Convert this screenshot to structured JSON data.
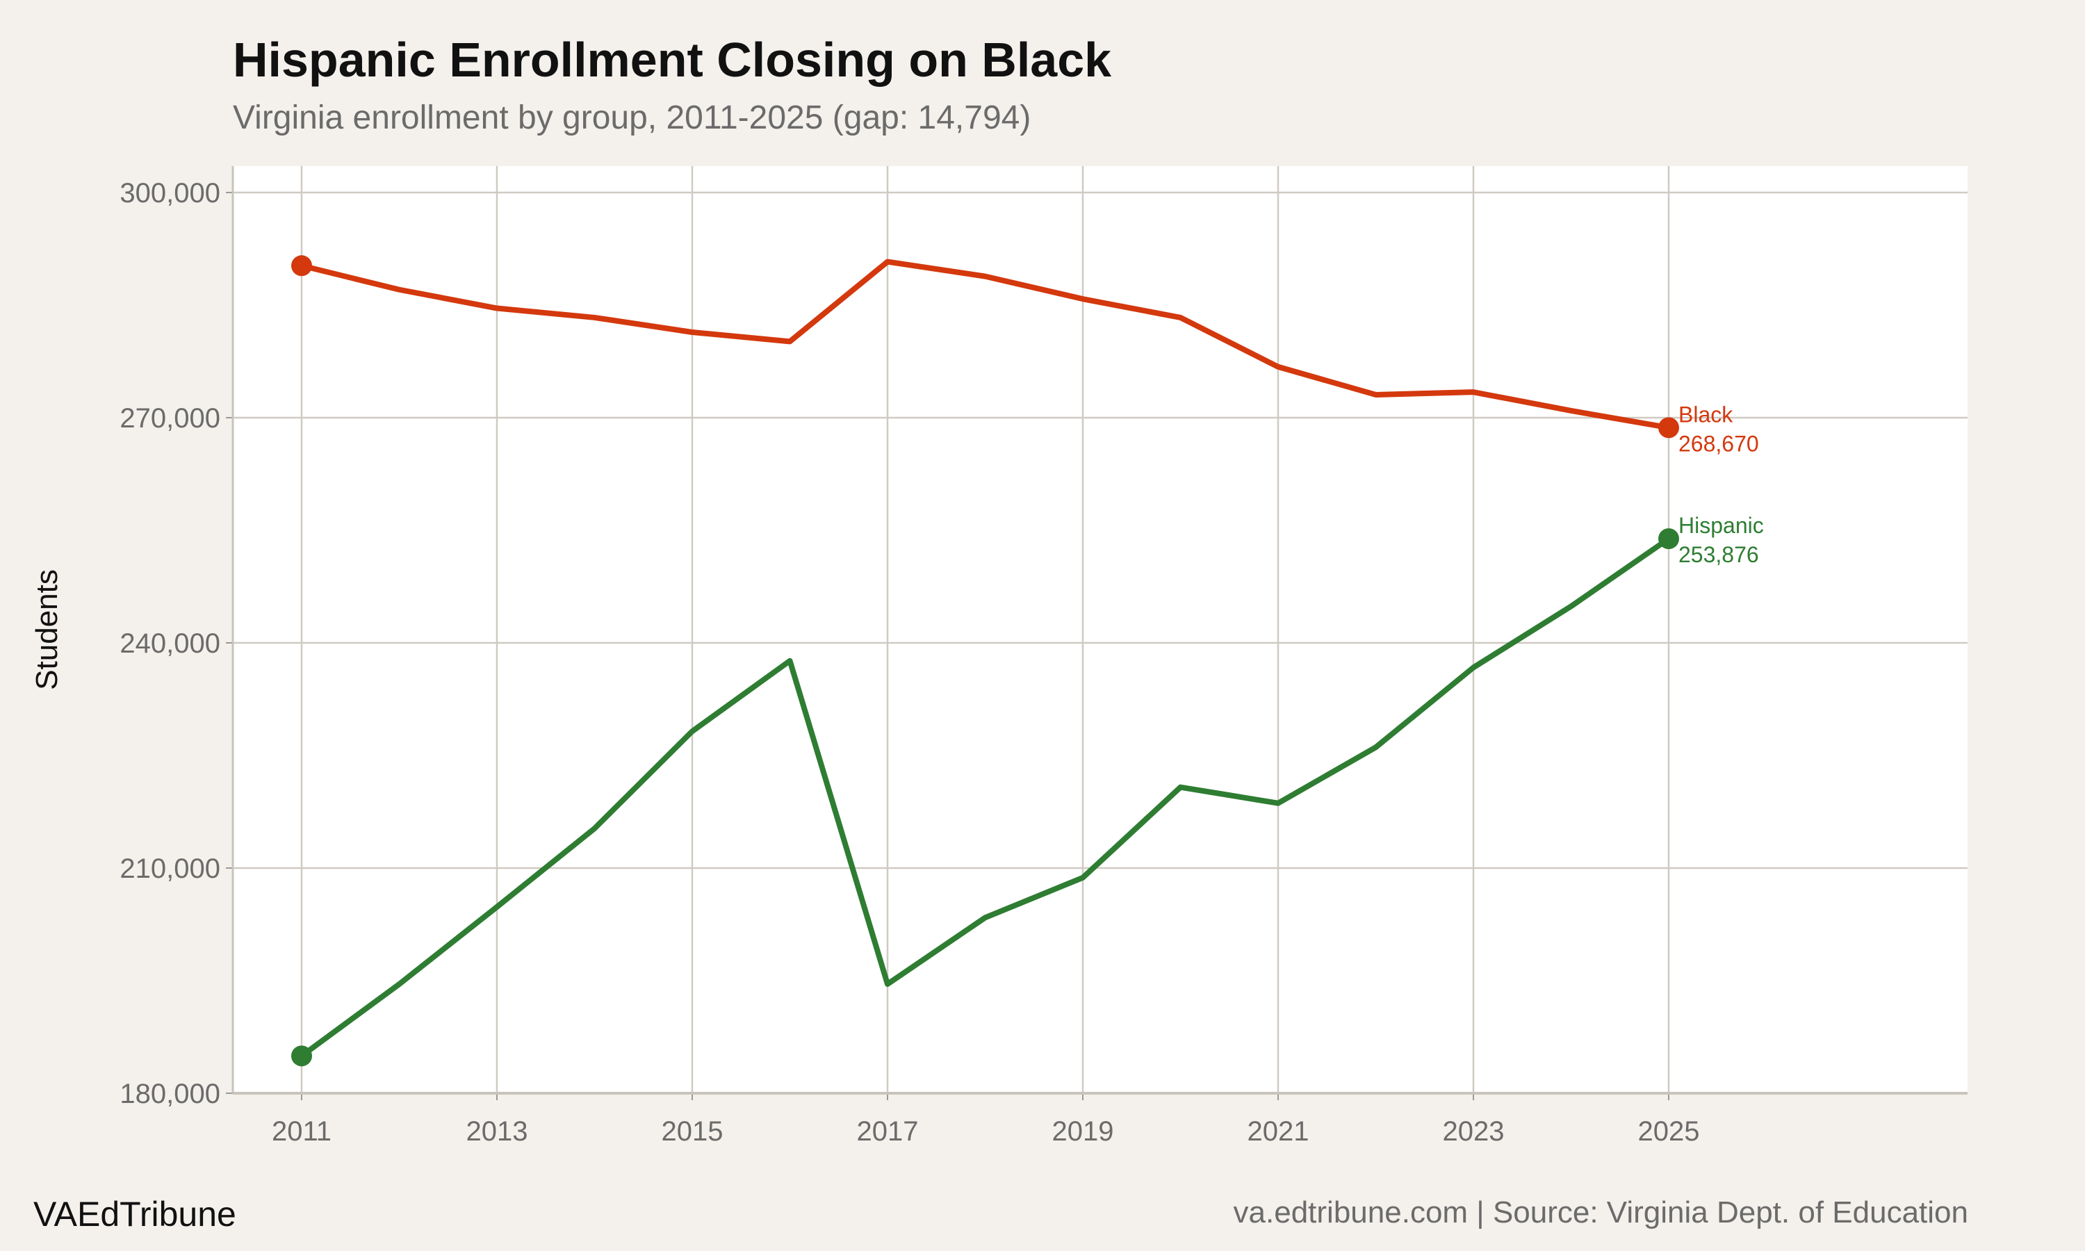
{
  "chart_data": {
    "type": "line",
    "title": "Hispanic Enrollment Closing on Black",
    "subtitle": "Virginia enrollment by group, 2011-2025 (gap: 14,794)",
    "xlabel": "",
    "ylabel": "Students",
    "xlim": [
      2010.7,
      2026.5
    ],
    "ylim": [
      180000,
      300000
    ],
    "x_ticks": [
      "2011",
      "2013",
      "2015",
      "2017",
      "2019",
      "2021",
      "2023",
      "2025"
    ],
    "y_ticks": [
      "180,000",
      "210,000",
      "240,000",
      "270,000",
      "300,000"
    ],
    "grid": true,
    "x": [
      2011,
      2012,
      2013,
      2014,
      2015,
      2016,
      2017,
      2018,
      2019,
      2020,
      2021,
      2022,
      2023,
      2024,
      2025
    ],
    "series": [
      {
        "name": "Black",
        "color": "#d4380d",
        "end_label": "268,670",
        "values": [
          290250,
          287060,
          284580,
          283340,
          281390,
          280150,
          290780,
          288830,
          285820,
          283340,
          276780,
          273060,
          273410,
          270930,
          268670
        ]
      },
      {
        "name": "Hispanic",
        "color": "#2e7d32",
        "end_label": "253,876",
        "values": [
          184970,
          194540,
          204820,
          215280,
          228220,
          237610,
          194540,
          203400,
          208720,
          220770,
          218640,
          226090,
          236720,
          244870,
          253876
        ]
      }
    ]
  },
  "footer": {
    "brand": "VAEdTribune",
    "source": "va.edtribune.com | Source: Virginia Dept. of Education"
  }
}
